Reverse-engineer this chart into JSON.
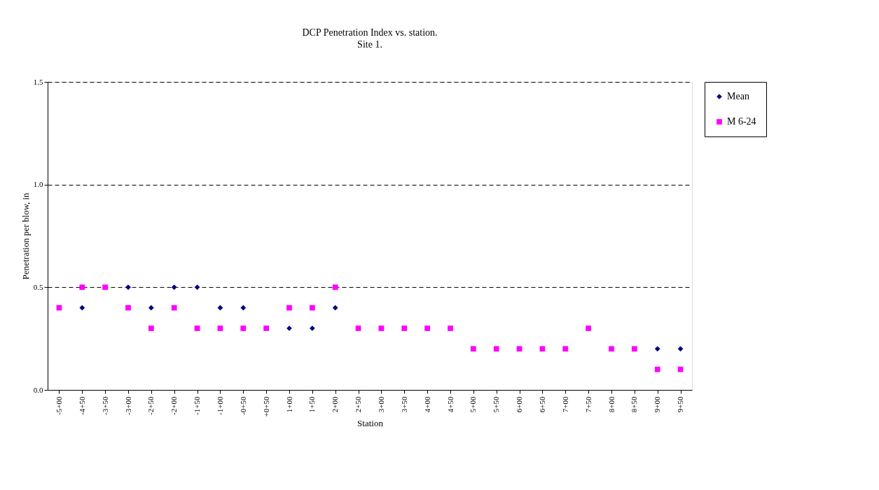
{
  "chart_data": {
    "type": "scatter",
    "title": "DCP Penetration Index vs. station.",
    "subtitle": "Site 1.",
    "xlabel": "Station",
    "ylabel": "Penetration per blow, in",
    "categories": [
      "-5+00",
      "-4+50",
      "-3+50",
      "-3+00",
      "-2+50",
      "-2+00",
      "-1+50",
      "-1+00",
      "-0+50",
      "+0+50",
      "1+00",
      "1+50",
      "2+00",
      "2+50",
      "3+00",
      "3+50",
      "4+00",
      "4+50",
      "5+00",
      "5+50",
      "6+00",
      "6+50",
      "7+00",
      "7+50",
      "8+00",
      "8+50",
      "9+00",
      "9+50"
    ],
    "series": [
      {
        "name": "Mean",
        "color": "#000080",
        "marker": "diamond",
        "values": [
          null,
          0.4,
          null,
          0.5,
          0.4,
          0.5,
          0.5,
          0.4,
          0.4,
          null,
          0.3,
          0.3,
          0.4,
          null,
          null,
          null,
          null,
          null,
          null,
          null,
          null,
          null,
          null,
          null,
          null,
          null,
          0.2,
          0.2
        ]
      },
      {
        "name": "M 6-24",
        "color": "#ff00ff",
        "marker": "square",
        "values": [
          0.4,
          0.5,
          0.5,
          0.4,
          0.3,
          0.4,
          0.3,
          0.3,
          0.3,
          0.3,
          0.4,
          0.4,
          0.5,
          0.3,
          0.3,
          0.3,
          0.3,
          0.3,
          0.2,
          0.2,
          0.2,
          0.2,
          0.2,
          0.3,
          0.2,
          0.2,
          0.1,
          0.1
        ]
      }
    ],
    "ylim": [
      0,
      1.5
    ],
    "yticks": [
      {
        "value": 0,
        "label": "0.0"
      },
      {
        "value": 0.5,
        "label": "0.5"
      },
      {
        "value": 1,
        "label": "1.0"
      },
      {
        "value": 1.5,
        "label": "1.5"
      }
    ],
    "grid": "y",
    "legend": "right"
  }
}
